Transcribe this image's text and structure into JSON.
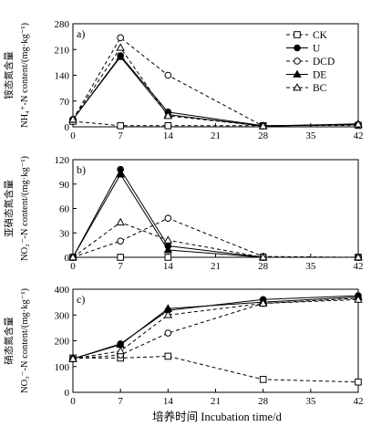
{
  "figure": {
    "x_axis_label": "培养时间 Incubation time/d"
  },
  "legend": {
    "entries": [
      {
        "key": "CK",
        "label": "CK"
      },
      {
        "key": "U",
        "label": "U"
      },
      {
        "key": "DCD",
        "label": "DCD"
      },
      {
        "key": "DE",
        "label": "DE"
      },
      {
        "key": "BC",
        "label": "BC"
      }
    ]
  },
  "styles": {
    "CK": {
      "marker": "square-open",
      "dash": "dashed",
      "color": "#000000"
    },
    "U": {
      "marker": "circle-filled",
      "dash": "solid",
      "color": "#000000"
    },
    "DCD": {
      "marker": "circle-open",
      "dash": "dashed",
      "color": "#000000"
    },
    "DE": {
      "marker": "triangle-filled",
      "dash": "solid",
      "color": "#000000"
    },
    "BC": {
      "marker": "triangle-open",
      "dash": "dashed",
      "color": "#000000"
    }
  },
  "chart_data": [
    {
      "type": "line",
      "panel": "a)",
      "ylabel_cn": "铵态氮含量",
      "ylabel_en": "NH₄⁺-N content/(mg·kg⁻¹)",
      "x": [
        0,
        7,
        14,
        28,
        42
      ],
      "xticks": [
        0,
        7,
        14,
        21,
        28,
        35,
        42
      ],
      "xlim": [
        0,
        42
      ],
      "ylim": [
        0,
        280
      ],
      "yticks": [
        0,
        70,
        140,
        210,
        280
      ],
      "series": [
        {
          "name": "CK",
          "values": [
            15,
            3,
            3,
            3,
            4
          ]
        },
        {
          "name": "U",
          "values": [
            20,
            193,
            40,
            3,
            6
          ]
        },
        {
          "name": "DCD",
          "values": [
            20,
            242,
            140,
            2,
            6
          ]
        },
        {
          "name": "DE",
          "values": [
            20,
            190,
            33,
            2,
            8
          ]
        },
        {
          "name": "BC",
          "values": [
            20,
            215,
            30,
            2,
            7
          ]
        }
      ]
    },
    {
      "type": "line",
      "panel": "b)",
      "ylabel_cn": "亚硝态氮含量",
      "ylabel_en": "NO₂⁻-N content/(mg·kg⁻¹)",
      "x": [
        0,
        7,
        14,
        28,
        42
      ],
      "xticks": [
        0,
        7,
        14,
        21,
        28,
        35,
        42
      ],
      "xlim": [
        0,
        42
      ],
      "ylim": [
        0,
        120
      ],
      "yticks": [
        0,
        30,
        60,
        90,
        120
      ],
      "series": [
        {
          "name": "CK",
          "values": [
            0,
            0,
            0,
            0,
            0
          ]
        },
        {
          "name": "U",
          "values": [
            0,
            108,
            14,
            0,
            0
          ]
        },
        {
          "name": "DCD",
          "values": [
            0,
            20,
            48,
            1,
            0
          ]
        },
        {
          "name": "DE",
          "values": [
            0,
            102,
            9,
            0,
            0
          ]
        },
        {
          "name": "BC",
          "values": [
            0,
            43,
            21,
            0,
            0
          ]
        }
      ]
    },
    {
      "type": "line",
      "panel": "c)",
      "ylabel_cn": "硝态氮含量",
      "ylabel_en": "NO₃⁻-N content/(mg·kg⁻¹)",
      "x": [
        0,
        7,
        14,
        28,
        42
      ],
      "xticks": [
        0,
        7,
        14,
        21,
        28,
        35,
        42
      ],
      "xlim": [
        0,
        42
      ],
      "ylim": [
        0,
        400
      ],
      "yticks": [
        0,
        100,
        200,
        300,
        400
      ],
      "series": [
        {
          "name": "CK",
          "values": [
            133,
            133,
            140,
            50,
            40
          ]
        },
        {
          "name": "U",
          "values": [
            130,
            188,
            318,
            360,
            375
          ]
        },
        {
          "name": "DCD",
          "values": [
            130,
            145,
            230,
            345,
            365
          ]
        },
        {
          "name": "DE",
          "values": [
            130,
            185,
            325,
            350,
            370
          ]
        },
        {
          "name": "BC",
          "values": [
            130,
            160,
            300,
            345,
            360
          ]
        }
      ]
    }
  ]
}
